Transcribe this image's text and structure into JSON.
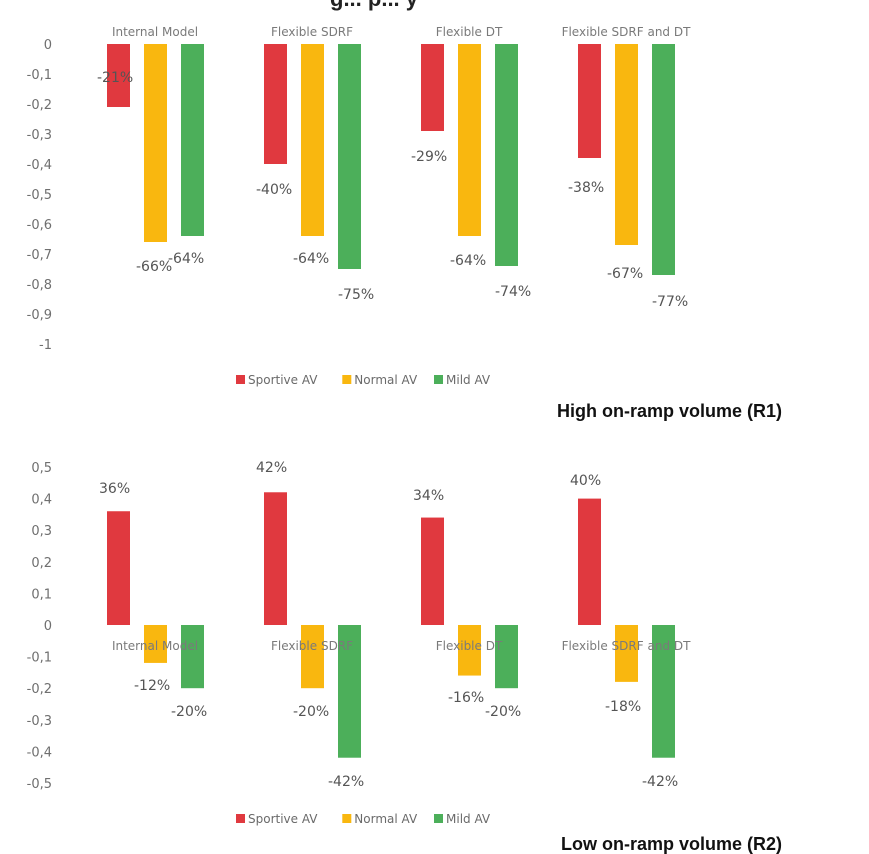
{
  "header": {
    "title_fragment": "g... p... y"
  },
  "chart_data": [
    {
      "type": "bar",
      "panel_caption": "High on-ramp volume (R1)",
      "categories": [
        "Internal Model",
        "Flexible SDRF",
        "Flexible DT",
        "Flexible SDRF and DT"
      ],
      "category_label_position": "top",
      "ylim": [
        -1,
        0
      ],
      "yticks": [
        "0",
        "-0,1",
        "-0,2",
        "-0,3",
        "-0,4",
        "-0,5",
        "-0,6",
        "-0,7",
        "-0,8",
        "-0,9",
        "-1"
      ],
      "ytick_values": [
        0,
        -0.1,
        -0.2,
        -0.3,
        -0.4,
        -0.5,
        -0.6,
        -0.7,
        -0.8,
        -0.9,
        -1
      ],
      "grid": false,
      "legend_position": "bottom",
      "series": [
        {
          "name": "Sportive AV",
          "color": "#e0393f",
          "values": [
            -0.21,
            -0.4,
            -0.29,
            -0.38
          ],
          "labels": [
            "-21%",
            "-40%",
            "-29%",
            "-38%"
          ]
        },
        {
          "name": "Normal AV",
          "color": "#f9b70f",
          "values": [
            -0.66,
            -0.64,
            -0.64,
            -0.67
          ],
          "labels": [
            "-66%",
            "-64%",
            "-64%",
            "-67%"
          ]
        },
        {
          "name": "Mild AV",
          "color": "#4caf5a",
          "values": [
            -0.64,
            -0.75,
            -0.74,
            -0.77
          ],
          "labels": [
            "-64%",
            "-75%",
            "-74%",
            "-77%"
          ]
        }
      ]
    },
    {
      "type": "bar",
      "panel_caption": "Low on-ramp volume (R2)",
      "categories": [
        "Internal Model",
        "Flexible SDRF",
        "Flexible DT",
        "Flexible SDRF and DT"
      ],
      "category_label_position": "at zero line",
      "ylim": [
        -0.5,
        0.5
      ],
      "yticks": [
        "0,5",
        "0,4",
        "0,3",
        "0,2",
        "0,1",
        "0",
        "-0,1",
        "-0,2",
        "-0,3",
        "-0,4",
        "-0,5"
      ],
      "ytick_values": [
        0.5,
        0.4,
        0.3,
        0.2,
        0.1,
        0,
        -0.1,
        -0.2,
        -0.3,
        -0.4,
        -0.5
      ],
      "grid": false,
      "legend_position": "bottom",
      "series": [
        {
          "name": "Sportive AV",
          "color": "#e0393f",
          "values": [
            0.36,
            0.42,
            0.34,
            0.4
          ],
          "labels": [
            "36%",
            "42%",
            "34%",
            "40%"
          ]
        },
        {
          "name": "Normal AV",
          "color": "#f9b70f",
          "values": [
            -0.12,
            -0.2,
            -0.16,
            -0.18
          ],
          "labels": [
            "-12%",
            "-20%",
            "-16%",
            "-18%"
          ]
        },
        {
          "name": "Mild AV",
          "color": "#4caf5a",
          "values": [
            -0.2,
            -0.42,
            -0.2,
            -0.42
          ],
          "labels": [
            "-20%",
            "-42%",
            "-20%",
            "-42%"
          ]
        }
      ]
    }
  ]
}
